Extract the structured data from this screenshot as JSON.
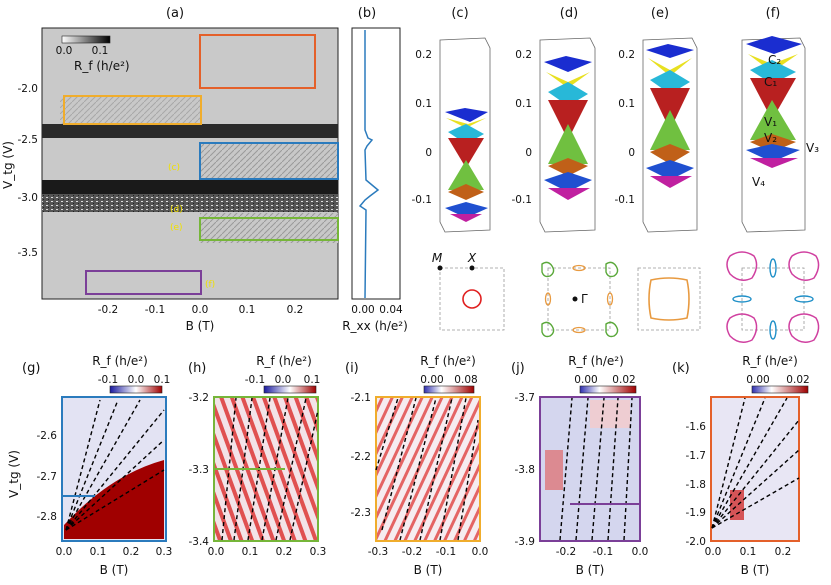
{
  "panel_labels": {
    "a": "(a)",
    "b": "(b)",
    "c": "(c)",
    "d": "(d)",
    "e": "(e)",
    "f": "(f)",
    "g": "(g)",
    "h": "(h)",
    "i": "(i)",
    "j": "(j)",
    "k": "(k)"
  },
  "colors": {
    "orange": "#e4602a",
    "yellow": "#f0ad2c",
    "blue": "#2b7bbd",
    "green": "#76b639",
    "purple": "#7b3f98",
    "pocket_red": "#e02020",
    "pocket_green": "#5aa83a",
    "pocket_orange": "#e89a40",
    "pocket_blue": "#2090c8",
    "pocket_magenta": "#d040a0"
  },
  "panel_a": {
    "ylabel": "V_tg (V)",
    "xlabel": "B (T)",
    "colorbar_ticks": [
      "0.0",
      "0.1"
    ],
    "colorbar_label": "R_f (h/e²)",
    "yticks": [
      "-2.0",
      "-2.5",
      "-3.0",
      "-3.5"
    ],
    "xticks": [
      "-0.2",
      "-0.1",
      "0.0",
      "0.1",
      "0.2"
    ],
    "markers": [
      "(c)",
      "(d)",
      "(e)",
      "(f)"
    ]
  },
  "panel_b": {
    "xlabel": "R_xx (h/e²)",
    "xticks": [
      "0.00",
      "0.04"
    ]
  },
  "band_panels": {
    "yticks": [
      "0.2",
      "0.1",
      "0",
      "-0.1"
    ],
    "f_labels": [
      "C₂",
      "C₁",
      "V₁",
      "V₂",
      "V₃",
      "V₄"
    ]
  },
  "bz_labels": {
    "M": "M",
    "X": "X",
    "Gamma": "Γ"
  },
  "panel_g": {
    "cbar_label": "R_f (h/e²)",
    "cbar_ticks": [
      "-0.1",
      "0.0",
      "0.1"
    ],
    "ylabel": "V_tg (V)",
    "xlabel": "B (T)",
    "yticks": [
      "-2.6",
      "-2.7",
      "-2.8"
    ],
    "xticks": [
      "0.0",
      "0.1",
      "0.2",
      "0.3"
    ]
  },
  "panel_h": {
    "cbar_label": "R_f (h/e²)",
    "cbar_ticks": [
      "-0.1",
      "0.0",
      "0.1"
    ],
    "yticks": [
      "-3.2",
      "-3.3",
      "-3.4"
    ],
    "xticks": [
      "0.0",
      "0.1",
      "0.2",
      "0.3"
    ]
  },
  "panel_i": {
    "cbar_label": "R_f (h/e²)",
    "cbar_ticks": [
      "0.00",
      "0.08"
    ],
    "yticks": [
      "-2.1",
      "-2.2",
      "-2.3"
    ],
    "xticks": [
      "-0.3",
      "-0.2",
      "-0.1",
      "0.0"
    ],
    "xlabel": "B (T)"
  },
  "panel_j": {
    "cbar_label": "R_f (h/e²)",
    "cbar_ticks": [
      "0.00",
      "0.02"
    ],
    "yticks": [
      "-3.7",
      "-3.8",
      "-3.9"
    ],
    "xticks": [
      "-0.2",
      "-0.1",
      "0.0"
    ],
    "xlabel": "B (T)"
  },
  "panel_k": {
    "cbar_label": "R_f (h/e²)",
    "cbar_ticks": [
      "0.00",
      "0.02"
    ],
    "yticks": [
      "-1.6",
      "-1.7",
      "-1.8",
      "-1.9",
      "-2.0"
    ],
    "xticks": [
      "0.0",
      "0.1",
      "0.2"
    ],
    "xlabel": "B (T)"
  }
}
